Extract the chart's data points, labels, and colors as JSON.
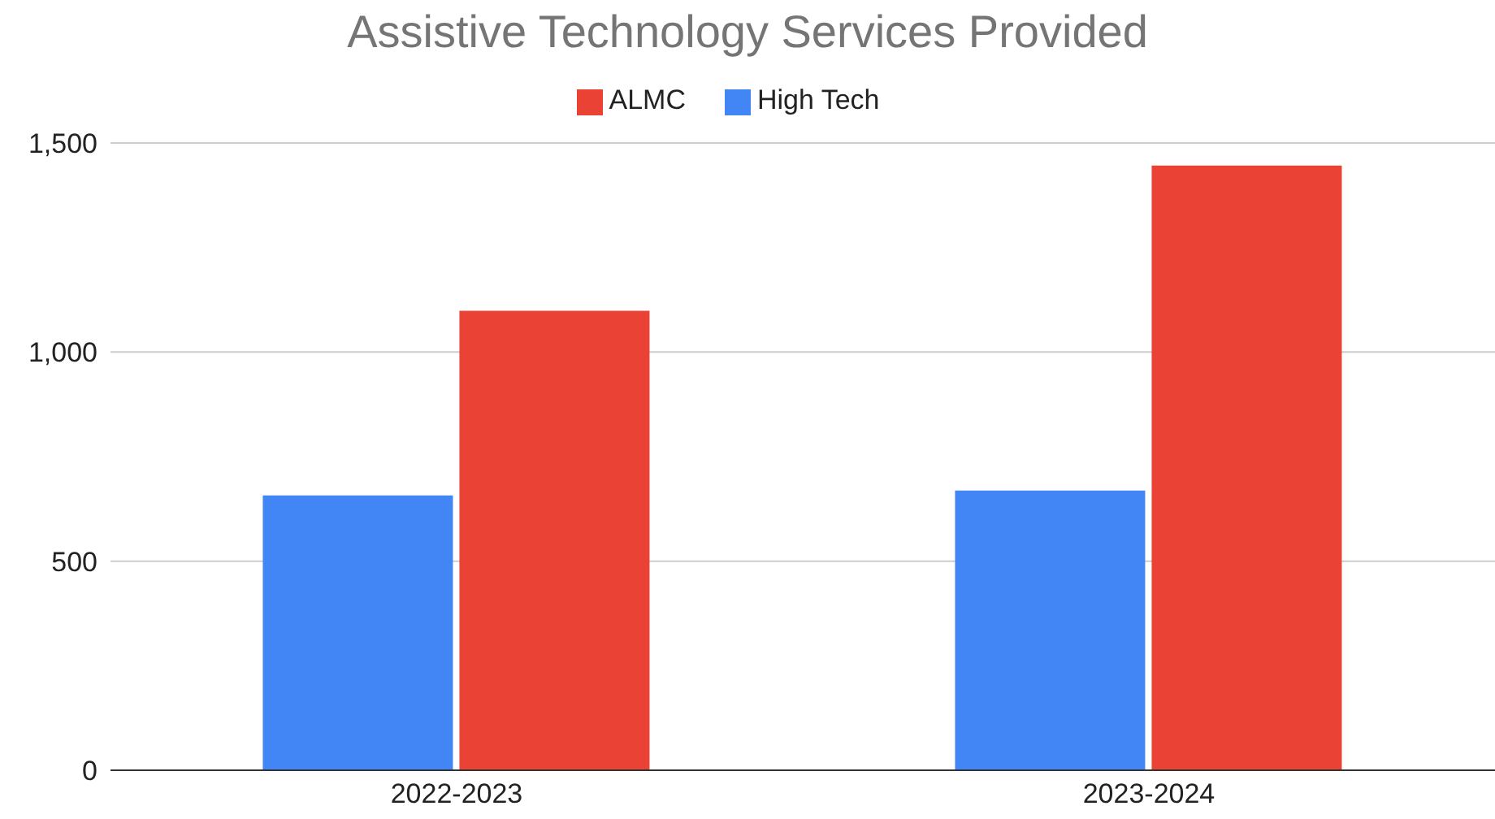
{
  "chart_data": {
    "type": "bar",
    "title": "Assistive Technology Services Provided",
    "categories": [
      "2022-2023",
      "2023-2024"
    ],
    "series": [
      {
        "name": "High Tech",
        "color": "#4285f4",
        "values": [
          657,
          669
        ]
      },
      {
        "name": "ALMC",
        "color": "#ea4335",
        "values": [
          1099,
          1446
        ]
      }
    ],
    "ylim": [
      0,
      1500
    ],
    "yticks": [
      0,
      500,
      {
        "value": 1000,
        "label": "1,000"
      },
      {
        "value": 1500,
        "label": "1,500"
      }
    ],
    "grid": "y",
    "legend": "top"
  }
}
